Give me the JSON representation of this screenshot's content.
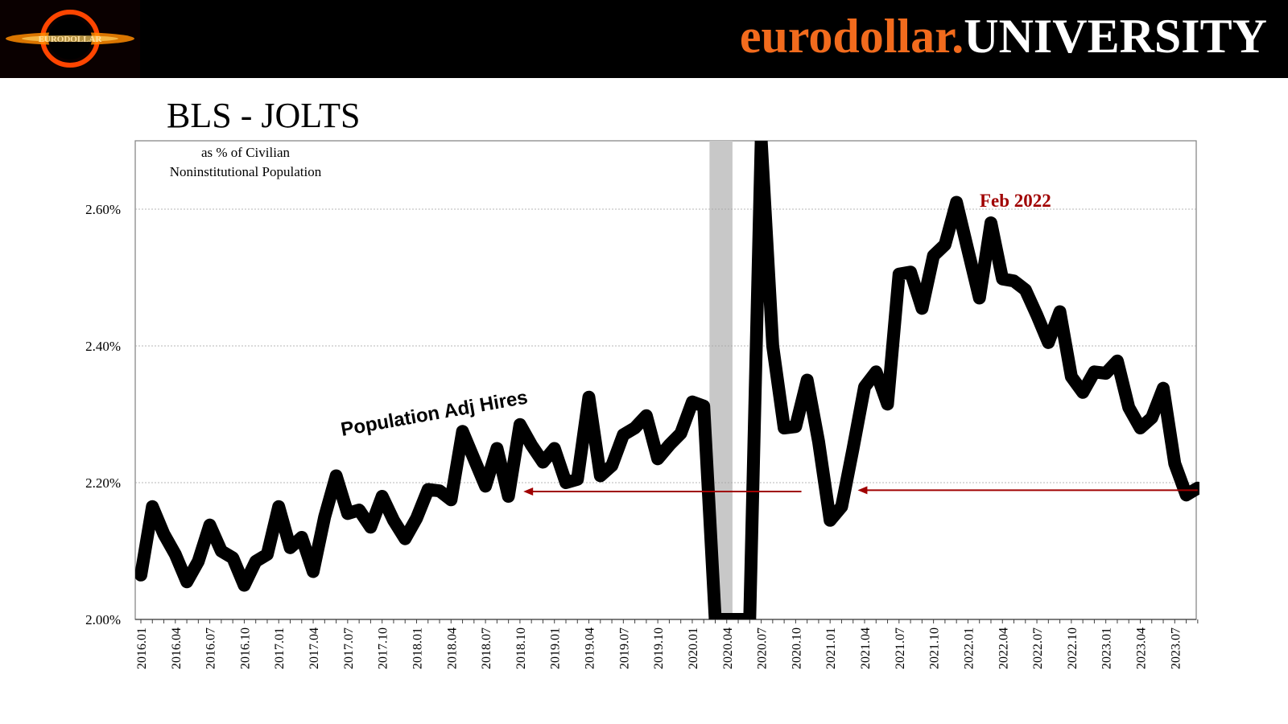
{
  "header": {
    "brand_part1": "eurodollar.",
    "brand_part2": "UNIVERSITY",
    "logo_text": "EURODOLLAR",
    "brand_color": "#f26b1d"
  },
  "chart_data": {
    "type": "line",
    "title": "BLS - JOLTS",
    "subtitle_line1": "as % of Civilian",
    "subtitle_line2": "Noninstitutional Population",
    "ylim": [
      2.0,
      2.7
    ],
    "yticks": [
      2.0,
      2.2,
      2.4,
      2.6
    ],
    "ytick_labels": [
      "2.00%",
      "2.20%",
      "2.40%",
      "2.60%"
    ],
    "grid": true,
    "x_tick_labels": [
      "2016.01",
      "2016.04",
      "2016.07",
      "2016.10",
      "2017.01",
      "2017.04",
      "2017.07",
      "2017.10",
      "2018.01",
      "2018.04",
      "2018.07",
      "2018.10",
      "2019.01",
      "2019.04",
      "2019.07",
      "2019.10",
      "2020.01",
      "2020.04",
      "2020.07",
      "2020.10",
      "2021.01",
      "2021.04",
      "2021.07",
      "2021.10",
      "2022.01",
      "2022.04",
      "2022.07",
      "2022.10",
      "2023.01",
      "2023.04",
      "2023.07"
    ],
    "series": [
      {
        "name": "Population Adj Hires",
        "color": "#000000",
        "start": "2016.01",
        "values": [
          2.065,
          2.165,
          2.125,
          2.095,
          2.055,
          2.085,
          2.138,
          2.1,
          2.09,
          2.05,
          2.085,
          2.095,
          2.165,
          2.105,
          2.12,
          2.07,
          2.15,
          2.21,
          2.155,
          2.16,
          2.135,
          2.18,
          2.145,
          2.118,
          2.148,
          2.19,
          2.188,
          2.175,
          2.275,
          2.235,
          2.195,
          2.25,
          2.18,
          2.285,
          2.255,
          2.23,
          2.25,
          2.2,
          2.205,
          2.325,
          2.21,
          2.225,
          2.27,
          2.28,
          2.298,
          2.235,
          2.255,
          2.272,
          2.318,
          2.312,
          2.0,
          2.0,
          2.0,
          2.0,
          2.7,
          2.4,
          2.28,
          2.282,
          2.35,
          2.26,
          2.145,
          2.165,
          2.25,
          2.34,
          2.362,
          2.315,
          2.505,
          2.508,
          2.455,
          2.532,
          2.548,
          2.61,
          2.54,
          2.47,
          2.58,
          2.498,
          2.495,
          2.482,
          2.445,
          2.405,
          2.45,
          2.355,
          2.332,
          2.362,
          2.36,
          2.378,
          2.31,
          2.28,
          2.295,
          2.338,
          2.228,
          2.182,
          2.192
        ]
      }
    ],
    "recession_shade": [
      "2020.03",
      "2020.04"
    ],
    "annotations": [
      {
        "text": "Population Adj Hires",
        "color": "#000000"
      },
      {
        "text": "Feb 2022",
        "color": "#a00000"
      }
    ],
    "reference_arrows_color": "#a00000"
  }
}
